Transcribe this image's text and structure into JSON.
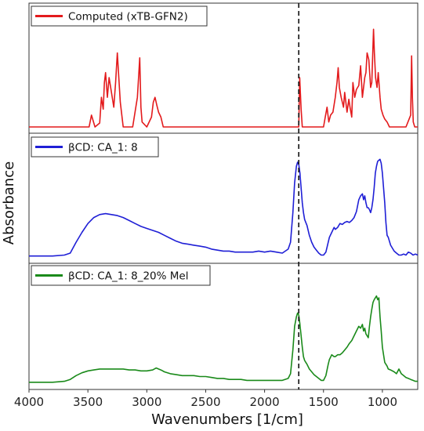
{
  "chart_data": {
    "type": "line",
    "xlabel": "Wavenumbers [1/cm]",
    "ylabel": "Absorbance",
    "xlim": [
      4000,
      700
    ],
    "x_reversed": true,
    "x_ticks": [
      4000,
      3500,
      3000,
      2500,
      2000,
      1500,
      1000
    ],
    "reference_line_x": 1710,
    "reference_line_style": "dashed",
    "legend_position": "top-left",
    "grid": false,
    "panels": [
      {
        "name": "Computed (xTB-GFN2)",
        "color": "#e31a1c",
        "ylim": [
          0,
          1
        ],
        "series": [
          {
            "name": "Computed (xTB-GFN2)",
            "x": [
              4000,
              3520,
              3490,
              3470,
              3440,
              3400,
              3385,
              3370,
              3360,
              3350,
              3335,
              3320,
              3300,
              3280,
              3265,
              3250,
              3240,
              3225,
              3200,
              3120,
              3080,
              3060,
              3050,
              3040,
              3000,
              2960,
              2945,
              2930,
              2915,
              2900,
              2880,
              2860,
              2800,
              2500,
              2000,
              1760,
              1710,
              1702,
              1690,
              1680,
              1660,
              1630,
              1560,
              1500,
              1485,
              1470,
              1455,
              1440,
              1420,
              1400,
              1385,
              1375,
              1365,
              1350,
              1330,
              1320,
              1310,
              1300,
              1285,
              1275,
              1260,
              1250,
              1235,
              1220,
              1200,
              1185,
              1170,
              1150,
              1140,
              1130,
              1115,
              1100,
              1090,
              1075,
              1068,
              1058,
              1045,
              1035,
              1020,
              1010,
              995,
              980,
              960,
              940,
              900,
              850,
              800,
              760,
              752,
              745,
              738,
              725,
              700
            ],
            "y": [
              0,
              0,
              0,
              0.12,
              0,
              0.04,
              0.3,
              0.18,
              0.45,
              0.55,
              0.3,
              0.5,
              0.35,
              0.2,
              0.45,
              0.75,
              0.55,
              0.25,
              0,
              0,
              0.3,
              0.7,
              0.2,
              0.05,
              0,
              0.1,
              0.25,
              0.3,
              0.22,
              0.15,
              0.1,
              0,
              0,
              0,
              0,
              0,
              0,
              0.5,
              0.18,
              0,
              0,
              0,
              0,
              0,
              0.1,
              0.2,
              0.05,
              0.12,
              0.15,
              0.3,
              0.45,
              0.6,
              0.4,
              0.3,
              0.2,
              0.35,
              0.25,
              0.15,
              0.28,
              0.2,
              0.1,
              0.45,
              0.3,
              0.38,
              0.42,
              0.62,
              0.3,
              0.5,
              0.55,
              0.75,
              0.68,
              0.4,
              0.45,
              0.99,
              0.75,
              0.5,
              0.4,
              0.55,
              0.3,
              0.18,
              0.12,
              0.08,
              0.05,
              0,
              0,
              0,
              0,
              0.12,
              0.72,
              0.3,
              0.05,
              0,
              0
            ]
          }
        ]
      },
      {
        "name": "βCD: CA_1: 8",
        "color": "#1f1fd6",
        "ylim": [
          0,
          1
        ],
        "series": [
          {
            "name": "βCD: CA_1: 8",
            "x": [
              4000,
              3800,
              3700,
              3650,
              3600,
              3550,
              3500,
              3450,
              3400,
              3350,
              3300,
              3250,
              3200,
              3150,
              3100,
              3050,
              3000,
              2950,
              2900,
              2850,
              2800,
              2750,
              2700,
              2650,
              2600,
              2550,
              2500,
              2450,
              2400,
              2350,
              2300,
              2250,
              2200,
              2150,
              2100,
              2050,
              2000,
              1950,
              1900,
              1850,
              1800,
              1780,
              1760,
              1745,
              1730,
              1720,
              1710,
              1700,
              1690,
              1680,
              1670,
              1660,
              1650,
              1640,
              1620,
              1600,
              1580,
              1560,
              1540,
              1520,
              1500,
              1480,
              1470,
              1460,
              1450,
              1430,
              1410,
              1400,
              1380,
              1360,
              1340,
              1320,
              1300,
              1280,
              1260,
              1240,
              1220,
              1200,
              1185,
              1170,
              1160,
              1150,
              1140,
              1130,
              1120,
              1110,
              1100,
              1090,
              1080,
              1070,
              1060,
              1050,
              1040,
              1030,
              1020,
              1010,
              1000,
              990,
              980,
              970,
              960,
              950,
              930,
              900,
              880,
              860,
              840,
              820,
              800,
              780,
              760,
              740,
              720,
              700
            ],
            "y": [
              0.01,
              0.01,
              0.02,
              0.04,
              0.15,
              0.25,
              0.34,
              0.4,
              0.43,
              0.44,
              0.43,
              0.42,
              0.4,
              0.37,
              0.34,
              0.31,
              0.29,
              0.27,
              0.25,
              0.22,
              0.19,
              0.16,
              0.14,
              0.13,
              0.12,
              0.11,
              0.1,
              0.08,
              0.07,
              0.06,
              0.06,
              0.05,
              0.05,
              0.05,
              0.05,
              0.06,
              0.05,
              0.06,
              0.05,
              0.04,
              0.08,
              0.15,
              0.45,
              0.75,
              0.92,
              0.96,
              0.94,
              0.85,
              0.7,
              0.55,
              0.45,
              0.38,
              0.35,
              0.32,
              0.22,
              0.15,
              0.1,
              0.07,
              0.04,
              0.02,
              0.02,
              0.05,
              0.1,
              0.15,
              0.2,
              0.25,
              0.3,
              0.28,
              0.3,
              0.34,
              0.33,
              0.35,
              0.36,
              0.35,
              0.37,
              0.4,
              0.46,
              0.58,
              0.62,
              0.64,
              0.58,
              0.62,
              0.55,
              0.5,
              0.5,
              0.48,
              0.45,
              0.5,
              0.58,
              0.7,
              0.85,
              0.92,
              0.97,
              0.98,
              0.99,
              0.95,
              0.85,
              0.7,
              0.55,
              0.35,
              0.22,
              0.2,
              0.12,
              0.06,
              0.04,
              0.02,
              0.02,
              0.03,
              0.02,
              0.05,
              0.04,
              0.02,
              0.03,
              0.02
            ]
          }
        ]
      },
      {
        "name": "βCD: CA_1: 8_20% Mel",
        "color": "#1a8a1a",
        "ylim": [
          0,
          1
        ],
        "series": [
          {
            "name": "βCD: CA_1: 8_20% Mel",
            "x": [
              4000,
              3800,
              3700,
              3650,
              3600,
              3550,
              3500,
              3450,
              3400,
              3350,
              3300,
              3250,
              3200,
              3150,
              3100,
              3050,
              3000,
              2950,
              2920,
              2900,
              2880,
              2850,
              2800,
              2750,
              2700,
              2650,
              2600,
              2550,
              2500,
              2450,
              2400,
              2350,
              2300,
              2250,
              2200,
              2150,
              2100,
              2050,
              2000,
              1950,
              1900,
              1850,
              1800,
              1780,
              1760,
              1745,
              1730,
              1720,
              1710,
              1700,
              1690,
              1680,
              1670,
              1660,
              1650,
              1640,
              1620,
              1600,
              1580,
              1560,
              1540,
              1520,
              1500,
              1480,
              1470,
              1460,
              1450,
              1430,
              1410,
              1400,
              1380,
              1360,
              1340,
              1320,
              1300,
              1280,
              1260,
              1240,
              1220,
              1200,
              1185,
              1170,
              1160,
              1150,
              1140,
              1130,
              1120,
              1110,
              1100,
              1090,
              1080,
              1070,
              1060,
              1050,
              1040,
              1030,
              1020,
              1010,
              1000,
              990,
              980,
              970,
              960,
              950,
              930,
              900,
              880,
              860,
              840,
              820,
              800,
              780,
              760,
              740,
              720,
              700
            ],
            "y": [
              0.01,
              0.01,
              0.02,
              0.04,
              0.08,
              0.11,
              0.13,
              0.14,
              0.15,
              0.15,
              0.15,
              0.15,
              0.15,
              0.14,
              0.14,
              0.13,
              0.13,
              0.14,
              0.16,
              0.15,
              0.14,
              0.12,
              0.1,
              0.09,
              0.08,
              0.08,
              0.08,
              0.07,
              0.07,
              0.06,
              0.05,
              0.05,
              0.04,
              0.04,
              0.04,
              0.03,
              0.03,
              0.03,
              0.03,
              0.03,
              0.03,
              0.03,
              0.05,
              0.1,
              0.35,
              0.6,
              0.7,
              0.74,
              0.72,
              0.62,
              0.5,
              0.38,
              0.28,
              0.24,
              0.22,
              0.2,
              0.15,
              0.12,
              0.09,
              0.07,
              0.05,
              0.03,
              0.03,
              0.08,
              0.14,
              0.2,
              0.25,
              0.3,
              0.28,
              0.28,
              0.3,
              0.3,
              0.32,
              0.35,
              0.38,
              0.42,
              0.45,
              0.5,
              0.55,
              0.6,
              0.58,
              0.62,
              0.55,
              0.58,
              0.52,
              0.5,
              0.48,
              0.6,
              0.7,
              0.78,
              0.85,
              0.88,
              0.9,
              0.92,
              0.88,
              0.9,
              0.7,
              0.55,
              0.38,
              0.3,
              0.22,
              0.2,
              0.18,
              0.15,
              0.14,
              0.12,
              0.1,
              0.15,
              0.1,
              0.08,
              0.06,
              0.05,
              0.04,
              0.03,
              0.02,
              0.02
            ]
          }
        ]
      }
    ]
  }
}
